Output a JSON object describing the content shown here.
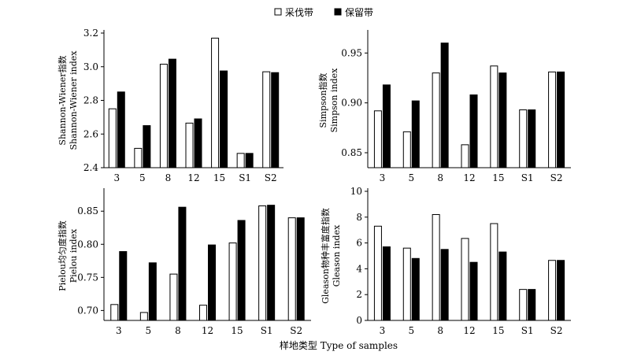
{
  "legend": {
    "placement": "top-center",
    "items": [
      {
        "label": "采伐带",
        "fill": "#ffffff"
      },
      {
        "label": "保留带",
        "fill": "#000000"
      }
    ]
  },
  "xlabel": "样地类型 Type of samples",
  "colors": {
    "series_cut": "#ffffff",
    "series_retained": "#000000",
    "stroke": "#000000"
  },
  "chart_data": [
    {
      "type": "bar",
      "ylabel_lines": [
        "Shannon-Wiener指数",
        "Shannon-Wiener index"
      ],
      "categories": [
        "3",
        "5",
        "8",
        "12",
        "15",
        "S1",
        "S2"
      ],
      "ylim": [
        2.4,
        3.2
      ],
      "yticks": [
        2.4,
        2.6,
        2.8,
        3.0,
        3.2
      ],
      "ytick_labels": [
        "2.4",
        "2.6",
        "2.8",
        "3.0",
        "3.2"
      ],
      "series": [
        {
          "name": "采伐带",
          "values": [
            2.75,
            2.515,
            3.015,
            2.665,
            3.17,
            2.485,
            2.97
          ]
        },
        {
          "name": "保留带",
          "values": [
            2.85,
            2.65,
            3.045,
            2.69,
            2.975,
            2.485,
            2.965
          ]
        }
      ]
    },
    {
      "type": "bar",
      "ylabel_lines": [
        "Simpson指数",
        "Simpson index"
      ],
      "categories": [
        "3",
        "5",
        "8",
        "12",
        "15",
        "S1",
        "S2"
      ],
      "ylim": [
        0.835,
        0.97
      ],
      "yticks": [
        0.85,
        0.9,
        0.95
      ],
      "ytick_labels": [
        "0.85",
        "0.90",
        "0.95"
      ],
      "series": [
        {
          "name": "采伐带",
          "values": [
            0.892,
            0.871,
            0.93,
            0.858,
            0.937,
            0.893,
            0.931
          ]
        },
        {
          "name": "保留带",
          "values": [
            0.918,
            0.902,
            0.96,
            0.908,
            0.93,
            0.893,
            0.931
          ]
        }
      ]
    },
    {
      "type": "bar",
      "ylabel_lines": [
        "Pielou均匀度指数",
        "Pielou index"
      ],
      "categories": [
        "3",
        "5",
        "8",
        "12",
        "15",
        "S1",
        "S2"
      ],
      "ylim": [
        0.685,
        0.88
      ],
      "yticks": [
        0.7,
        0.75,
        0.8,
        0.85
      ],
      "ytick_labels": [
        "0.70",
        "0.75",
        "0.80",
        "0.85"
      ],
      "series": [
        {
          "name": "采伐带",
          "values": [
            0.709,
            0.697,
            0.755,
            0.708,
            0.802,
            0.858,
            0.84
          ]
        },
        {
          "name": "保留带",
          "values": [
            0.789,
            0.772,
            0.856,
            0.799,
            0.836,
            0.859,
            0.84
          ]
        }
      ]
    },
    {
      "type": "bar",
      "ylabel_lines": [
        "Gleason物种丰富度指数",
        "Gleason index"
      ],
      "categories": [
        "3",
        "5",
        "8",
        "12",
        "15",
        "S1",
        "S2"
      ],
      "ylim": [
        0,
        10
      ],
      "yticks": [
        0,
        2,
        4,
        6,
        8,
        10
      ],
      "ytick_labels": [
        "0",
        "2",
        "4",
        "6",
        "8",
        "10"
      ],
      "series": [
        {
          "name": "采伐带",
          "values": [
            7.3,
            5.6,
            8.2,
            6.35,
            7.5,
            2.4,
            4.65
          ]
        },
        {
          "name": "保留带",
          "values": [
            5.7,
            4.8,
            5.5,
            4.5,
            5.3,
            2.4,
            4.65
          ]
        }
      ]
    }
  ]
}
